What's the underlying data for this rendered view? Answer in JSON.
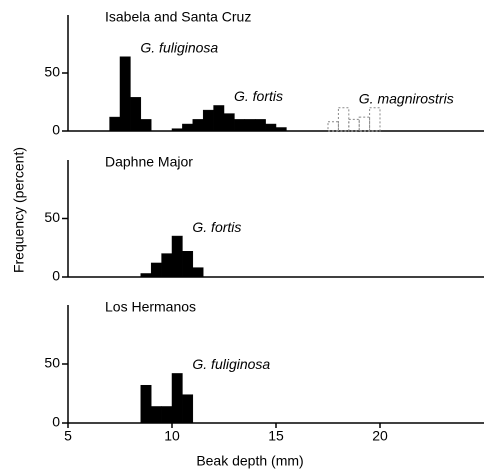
{
  "chart_data": [
    {
      "type": "histogram",
      "title": "Isabela and Santa Cruz",
      "bins": [
        7,
        7.5,
        8,
        8.5,
        9,
        9.5,
        10,
        10.5,
        11,
        11.5,
        12,
        12.5,
        13,
        13.5,
        14,
        14.5,
        15,
        15.5,
        16,
        16.5,
        17,
        17.5,
        18,
        18.5,
        19,
        19.5,
        20
      ],
      "series": [
        {
          "name": "G. fuliginosa",
          "color": "#000000",
          "filled": true,
          "values": [
            12,
            64,
            29,
            10,
            0,
            0,
            0,
            0,
            0,
            0,
            0,
            0,
            0,
            0,
            0,
            0,
            0,
            0,
            0,
            0,
            0,
            0,
            0,
            0,
            0,
            0
          ]
        },
        {
          "name": "G. fortis",
          "color": "#000000",
          "filled": true,
          "values": [
            0,
            0,
            0,
            0,
            0,
            0,
            2,
            6,
            10,
            18,
            22,
            15,
            10,
            10,
            10,
            6,
            3,
            0,
            0,
            0,
            0,
            0,
            0,
            0,
            0,
            0
          ]
        },
        {
          "name": "G. magnirostris",
          "color": "#888888",
          "filled": false,
          "values": [
            0,
            0,
            0,
            0,
            0,
            0,
            0,
            0,
            0,
            0,
            0,
            0,
            0,
            0,
            0,
            0,
            0,
            0,
            0,
            0,
            0,
            8,
            20,
            10,
            12,
            20
          ]
        }
      ],
      "xlim": [
        5,
        25
      ],
      "ylim": [
        0,
        100
      ],
      "yticks": [
        0,
        50
      ]
    },
    {
      "type": "histogram",
      "title": "Daphne Major",
      "ylabel": "Frequency (percent)",
      "bins": [
        8.5,
        9,
        9.5,
        10,
        10.5,
        11,
        11.5
      ],
      "series": [
        {
          "name": "G. fortis",
          "color": "#000000",
          "filled": true,
          "values": [
            3,
            12,
            20,
            35,
            22,
            8
          ]
        }
      ],
      "xlim": [
        5,
        25
      ],
      "ylim": [
        0,
        100
      ],
      "yticks": [
        0,
        50
      ]
    },
    {
      "type": "histogram",
      "title": "Los Hermanos",
      "xlabel": "Beak depth (mm)",
      "bins": [
        8.5,
        9,
        9.5,
        10,
        10.5,
        11
      ],
      "series": [
        {
          "name": "G. fuliginosa",
          "color": "#000000",
          "filled": true,
          "values": [
            32,
            14,
            14,
            42,
            24
          ]
        }
      ],
      "xlim": [
        5,
        25
      ],
      "ylim": [
        0,
        100
      ],
      "yticks": [
        0,
        50
      ],
      "xticks": [
        5,
        10,
        15,
        20
      ]
    }
  ]
}
